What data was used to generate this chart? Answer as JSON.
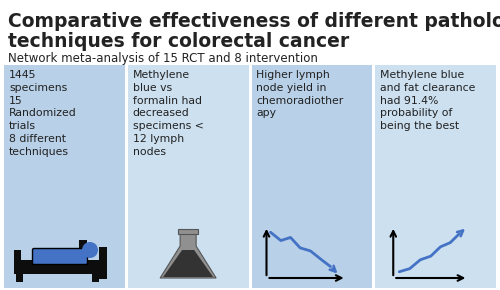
{
  "title_line1": "Comparative effectiveness of different pathologic",
  "title_line2": "techniques for colorectal cancer",
  "subtitle": "Network meta-analysis of 15 RCT and 8 intervention",
  "title_fontsize": 13.5,
  "subtitle_fontsize": 8.5,
  "bg_color": "#ffffff",
  "panel_color_1": "#b8d0e8",
  "panel_color_2": "#cce0f0",
  "panels": [
    "1445\nspecimens\n15\nRandomized\ntrials\n8 different\ntechniques",
    "Methylene\nblue vs\nformalin had\ndecreased\nspecimens <\n12 lymph\nnodes",
    "Higher lymph\nnode yield in\nchemoradiother\napy",
    "Methylene blue\nand fat clearance\nhad 91.4%\nprobability of\nbeing the best"
  ],
  "text_color": "#222222",
  "panel_text_fontsize": 7.8,
  "blue_color": "#4472c4",
  "dark_color": "#111111"
}
